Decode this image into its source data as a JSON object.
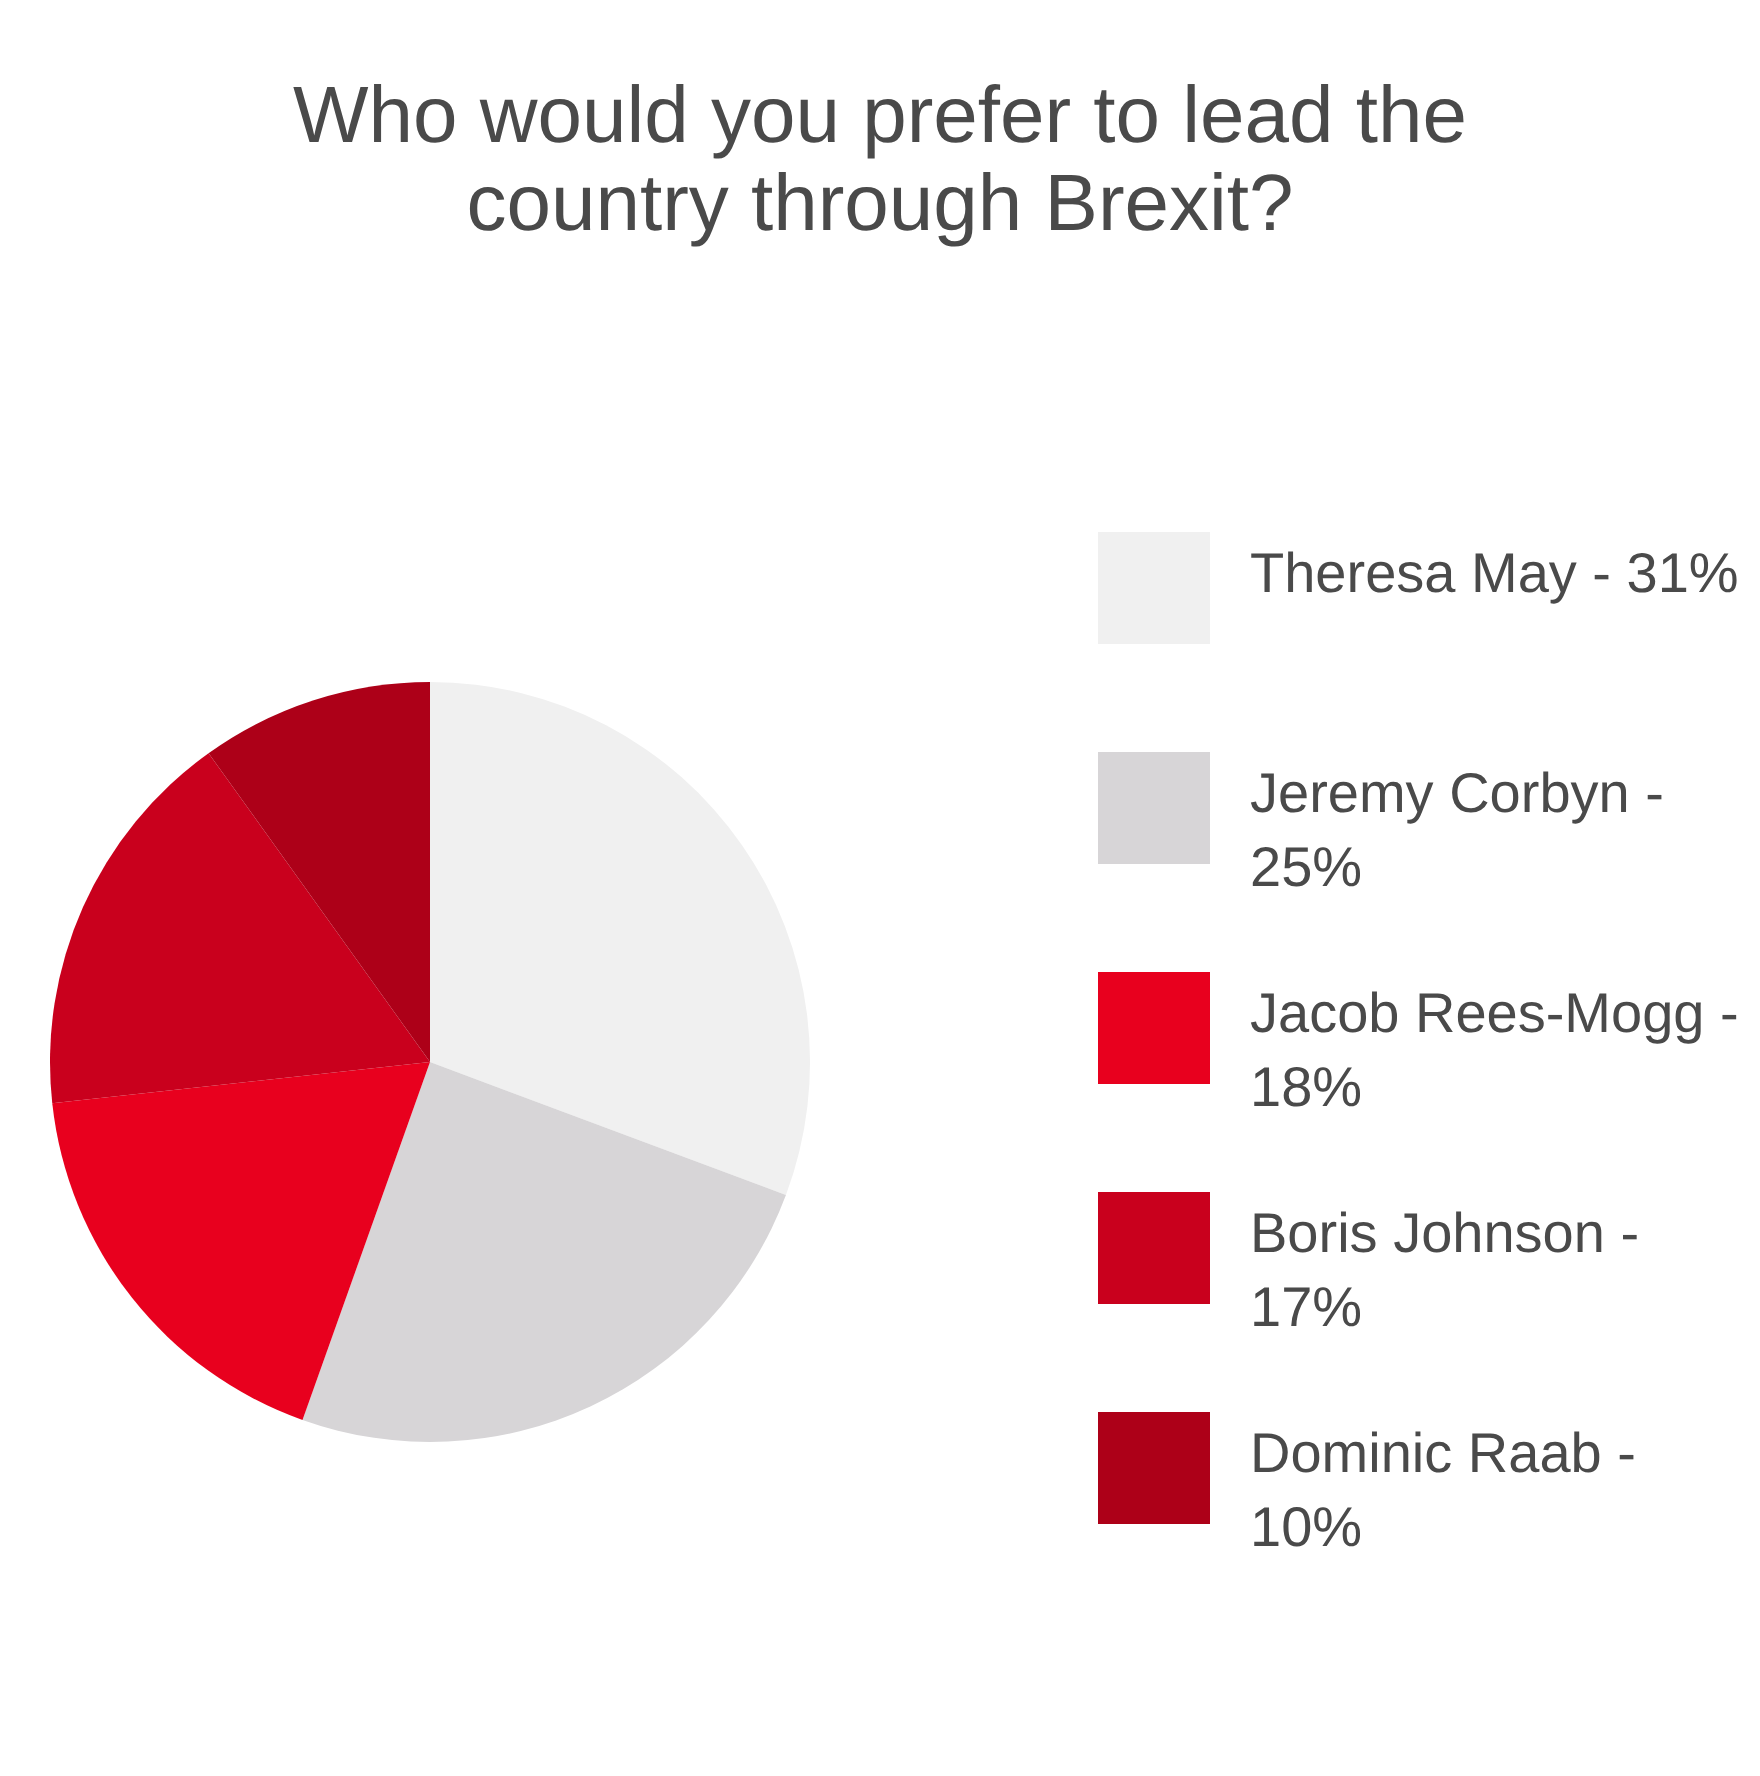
{
  "chart_data": {
    "type": "pie",
    "title": "Who would you prefer to lead the country through Brexit?",
    "categories": [
      "Theresa May - 31%",
      "Jeremy Corbyn - 25%",
      "Jacob Rees-Mogg - 18%",
      "Boris Johnson - 17%",
      "Dominic Raab - 10%"
    ],
    "values": [
      31,
      25,
      18,
      17,
      10
    ],
    "colors": [
      "#f0f0f0",
      "#d7d5d7",
      "#e8001e",
      "#c9001d",
      "#ad0018"
    ],
    "legend": "right"
  }
}
